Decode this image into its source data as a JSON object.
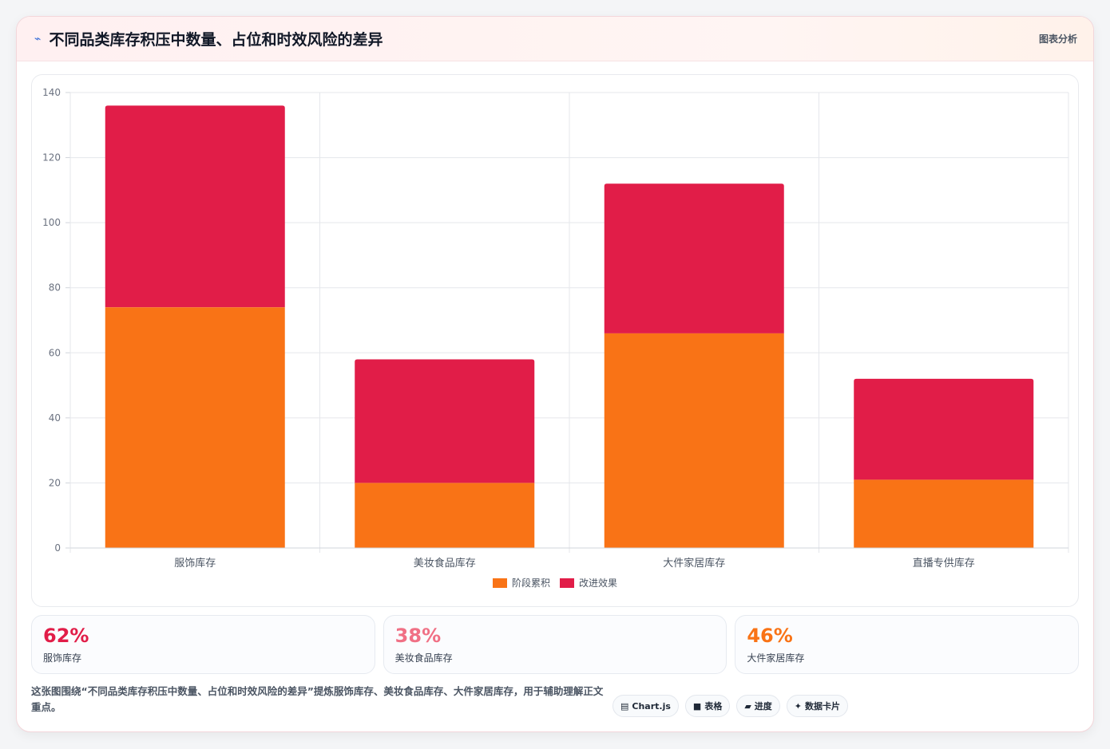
{
  "header": {
    "title": "不同品类库存积压中数量、占位和时效风险的差异",
    "right_label": "图表分析",
    "icon": "trend-arrow-icon"
  },
  "chart_data": {
    "type": "bar",
    "stacked": true,
    "categories": [
      "服饰库存",
      "美妆食品库存",
      "大件家居库存",
      "直播专供库存"
    ],
    "series": [
      {
        "name": "阶段累积",
        "color": "#f97316",
        "values": [
          74,
          20,
          66,
          21
        ]
      },
      {
        "name": "改进效果",
        "color": "#e11d48",
        "values": [
          62,
          38,
          46,
          31
        ]
      }
    ],
    "ylim": [
      0,
      140
    ],
    "yticks": [
      0,
      20,
      40,
      60,
      80,
      100,
      120,
      140
    ],
    "grid": true,
    "legend": "bottom"
  },
  "stats": [
    {
      "value": "62%",
      "label": "服饰库存",
      "color": "#e11d48"
    },
    {
      "value": "38%",
      "label": "美妆食品库存",
      "color": "#f07085"
    },
    {
      "value": "46%",
      "label": "大件家居库存",
      "color": "#f97316"
    }
  ],
  "footer": {
    "description": "这张图围绕“不同品类库存积压中数量、占位和时效风险的差异”提炼服饰库存、美妆食品库存、大件家居库存，用于辅助理解正文重点。",
    "chips": [
      {
        "icon": "▤",
        "label": "Chart.js"
      },
      {
        "icon": "■",
        "label": "表格"
      },
      {
        "icon": "▰",
        "label": "进度"
      },
      {
        "icon": "✦",
        "label": "数据卡片"
      }
    ]
  }
}
